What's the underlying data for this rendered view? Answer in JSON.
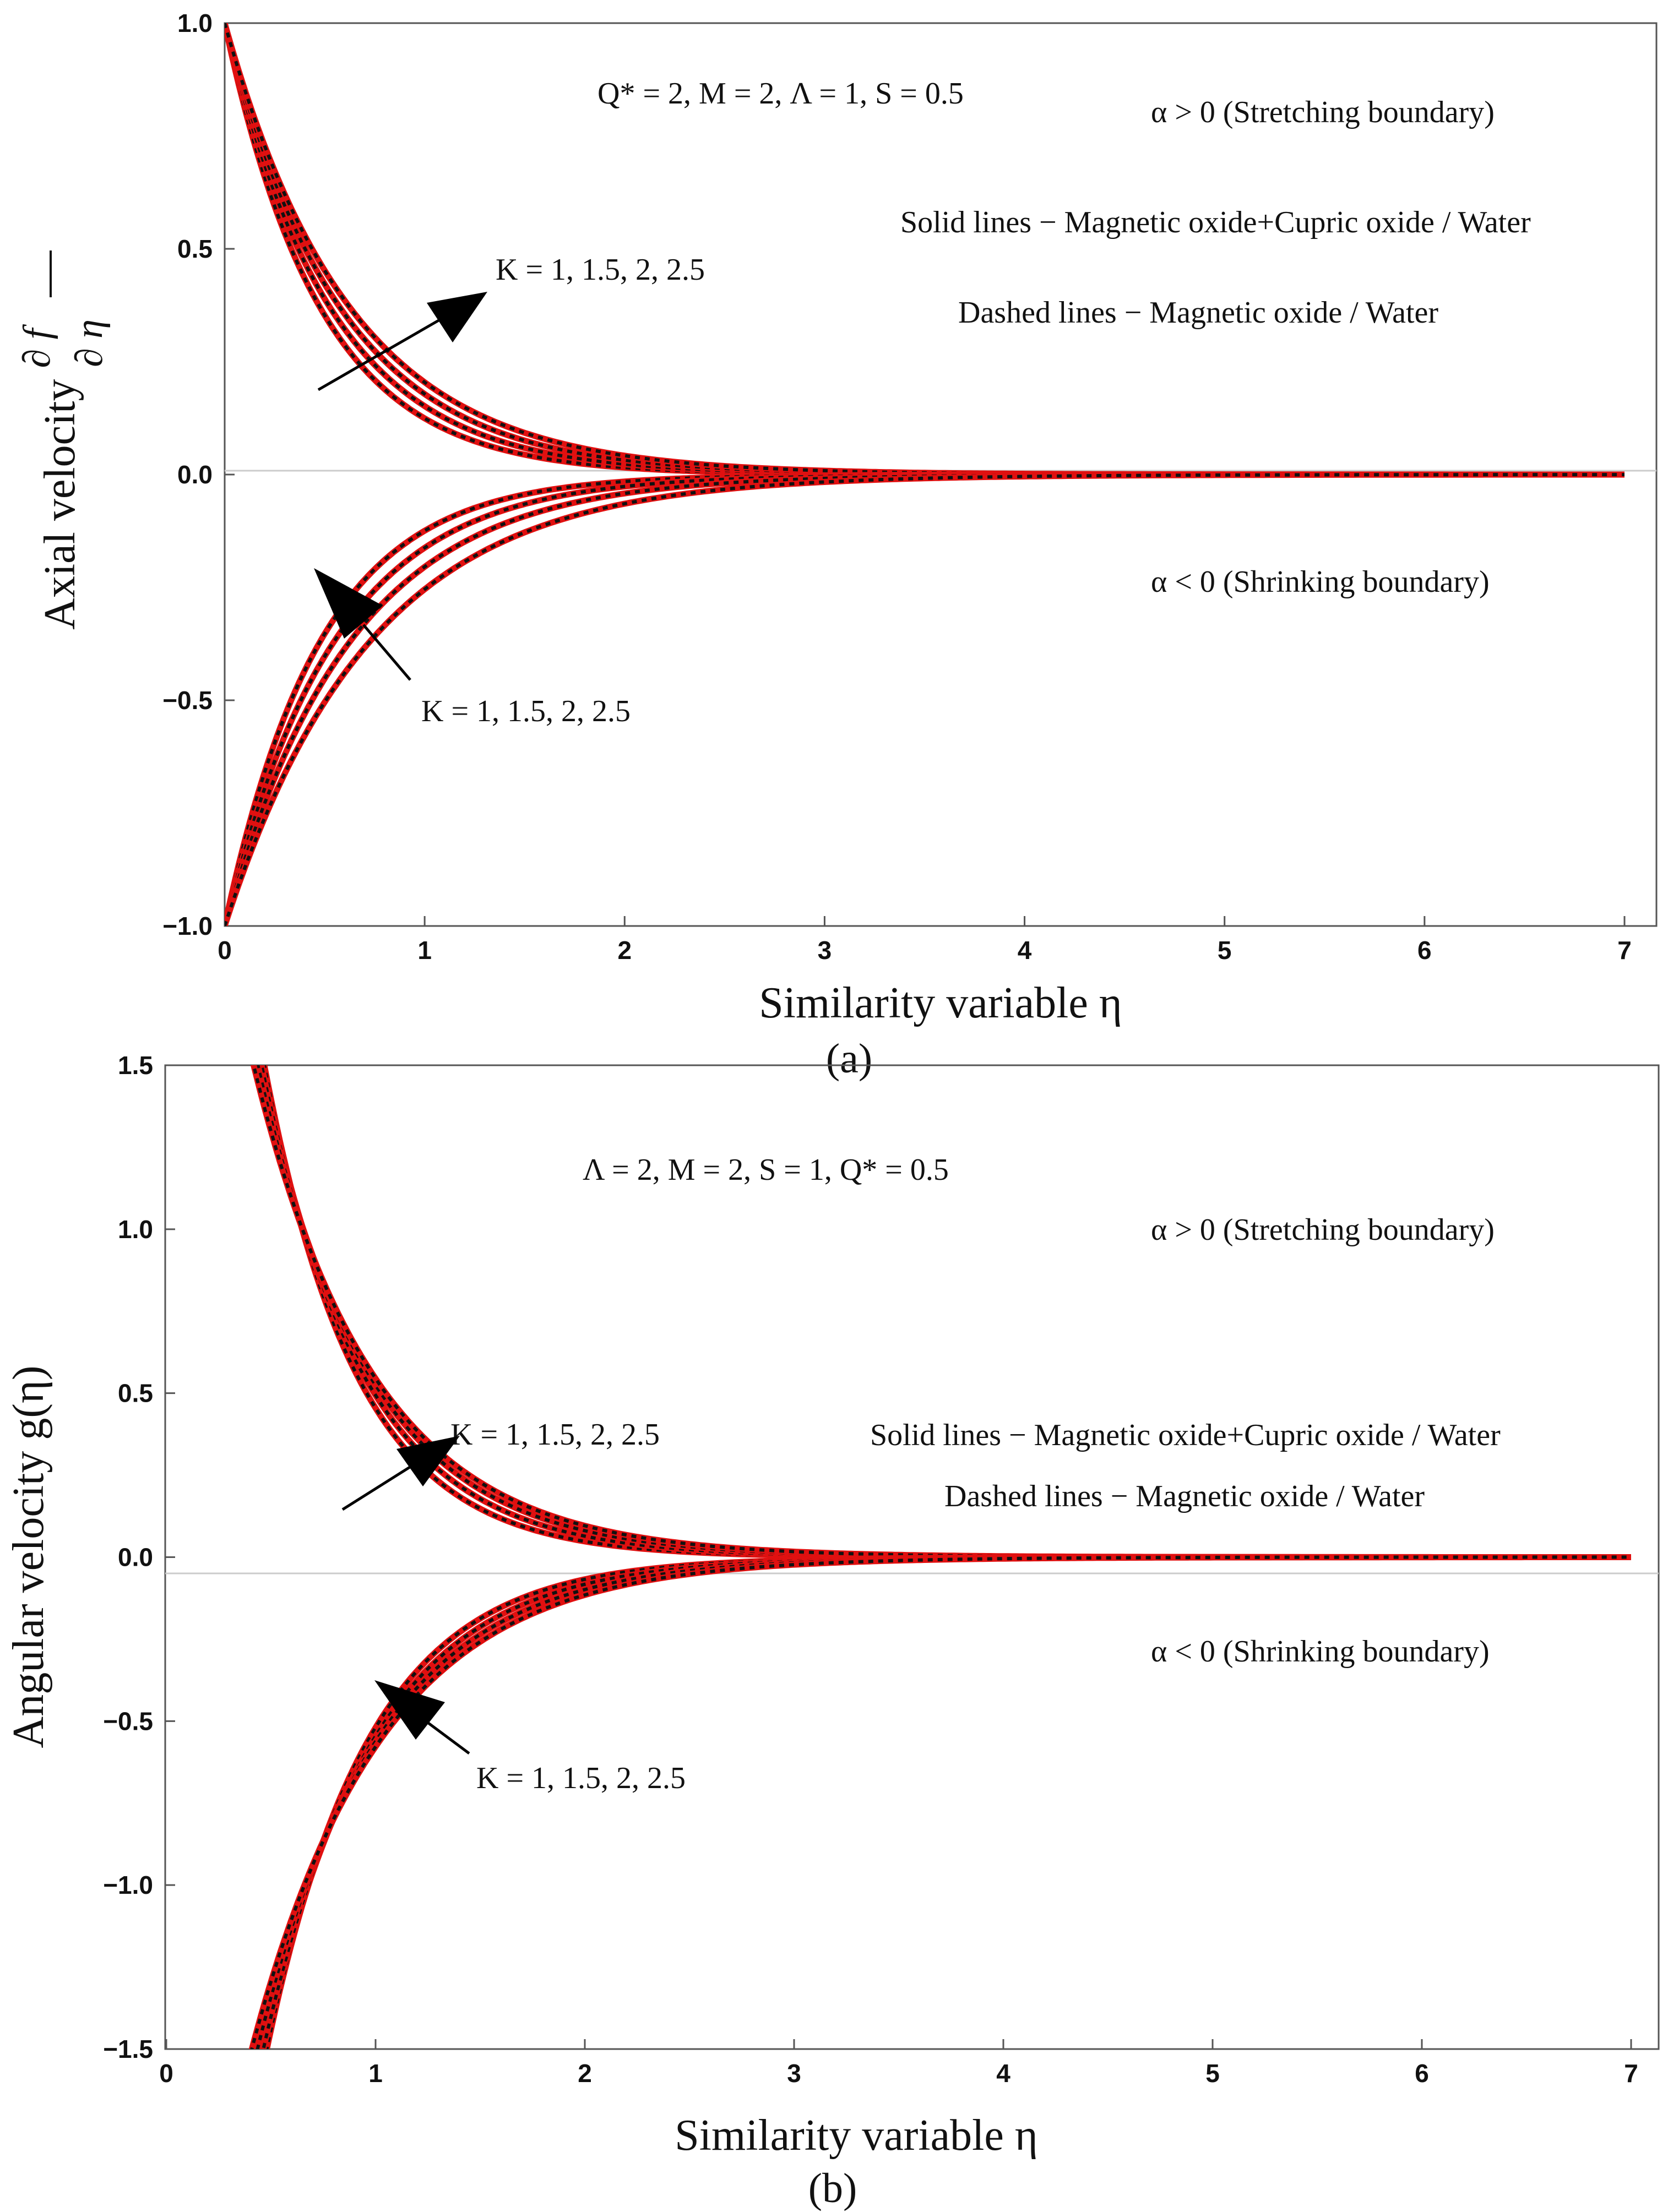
{
  "colors": {
    "solid_line": "#e01010",
    "dashed_line": "#111111",
    "axis": "#555555",
    "zero_line": "#cccccc",
    "arrow": "#000000"
  },
  "chart_data": [
    {
      "type": "line",
      "panel": "a",
      "panel_label": "(a)",
      "xlabel": "Similarity variable η",
      "ylabel": "Axial velocity ∂f/∂η",
      "xlim": [
        0,
        7
      ],
      "ylim": [
        -1.0,
        1.0
      ],
      "xticks": [
        "0",
        "1",
        "2",
        "3",
        "4",
        "5",
        "6",
        "7"
      ],
      "yticks": [
        "−1.0",
        "−0.5",
        "0.0",
        "0.5",
        "1.0"
      ],
      "annotations": {
        "params": "Q* = 2,  M = 2,  Λ = 1, S = 0.5",
        "stretching": "α > 0 (Stretching boundary)",
        "shrinking": "α < 0 (Shrinking boundary)",
        "solid_legend": "Solid lines − Magnetic oxide+Cupric oxide / Water",
        "dashed_legend": "Dashed lines − Magnetic oxide / Water",
        "k_upper": "K = 1, 1.5, 2, 2.5",
        "k_lower": "K = 1, 1.5, 2, 2.5"
      },
      "curve_model": "y = ±exp(-η/L)",
      "series": [
        {
          "name": "α > 0, K = 1",
          "sign": 1,
          "L": 0.48
        },
        {
          "name": "α > 0, K = 1.5",
          "sign": 1,
          "L": 0.53
        },
        {
          "name": "α > 0, K = 2",
          "sign": 1,
          "L": 0.58
        },
        {
          "name": "α > 0, K = 2.5",
          "sign": 1,
          "L": 0.63
        },
        {
          "name": "α < 0, K = 1",
          "sign": -1,
          "L": 0.48
        },
        {
          "name": "α < 0, K = 1.5",
          "sign": -1,
          "L": 0.55
        },
        {
          "name": "α < 0, K = 2",
          "sign": -1,
          "L": 0.63
        },
        {
          "name": "α < 0, K = 2.5",
          "sign": -1,
          "L": 0.73
        }
      ]
    },
    {
      "type": "line",
      "panel": "b",
      "panel_label": "(b)",
      "xlabel": "Similarity variable η",
      "ylabel": "Angular velocity g(η)",
      "xlim": [
        0,
        7
      ],
      "ylim": [
        -1.5,
        1.5
      ],
      "xticks": [
        "0",
        "1",
        "2",
        "3",
        "4",
        "5",
        "6",
        "7"
      ],
      "yticks": [
        "−1.5",
        "−1.0",
        "−0.5",
        "0.0",
        "0.5",
        "1.0",
        "1.5"
      ],
      "annotations": {
        "params": "Λ = 2,  M = 2,  S = 1,  Q*  = 0.5",
        "stretching": "α > 0 (Stretching boundary)",
        "shrinking": "α < 0 (Shrinking boundary)",
        "solid_legend": "Solid lines − Magnetic oxide+Cupric oxide / Water",
        "dashed_legend": "Dashed lines − Magnetic oxide / Water",
        "k_upper": "K  = 1, 1.5, 2, 2.5",
        "k_lower": "K = 1, 1.5, 2, 2.5"
      },
      "curve_model": "y = ±A·exp(-η/L)",
      "series": [
        {
          "name": "α > 0, K = 1",
          "sign": 1,
          "A": 4.3,
          "L": 0.445
        },
        {
          "name": "α > 0, K = 1.5",
          "sign": 1,
          "A": 3.8,
          "L": 0.49
        },
        {
          "name": "α > 0, K = 2",
          "sign": 1,
          "A": 3.4,
          "L": 0.535
        },
        {
          "name": "α > 0, K = 2.5",
          "sign": 1,
          "A": 3.1,
          "L": 0.575
        },
        {
          "name": "α < 0, K = 1",
          "sign": -1,
          "A": 4.0,
          "L": 0.49
        },
        {
          "name": "α < 0, K = 1.5",
          "sign": -1,
          "A": 3.6,
          "L": 0.53
        },
        {
          "name": "α < 0, K = 2",
          "sign": -1,
          "A": 3.2,
          "L": 0.575
        },
        {
          "name": "α < 0, K = 2.5",
          "sign": -1,
          "A": 2.9,
          "L": 0.62
        }
      ]
    }
  ]
}
